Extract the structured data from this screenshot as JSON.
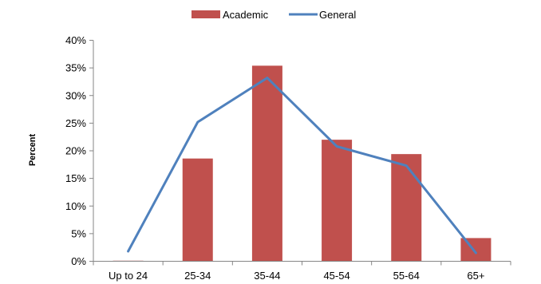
{
  "chart_data": {
    "type": "bar",
    "title": "",
    "xlabel": "",
    "ylabel": "Percent",
    "categories": [
      "Up to 24",
      "25-34",
      "35-44",
      "45-54",
      "55-64",
      "65+"
    ],
    "ylim": [
      0,
      40
    ],
    "yticks": [
      "0%",
      "5%",
      "10%",
      "15%",
      "20%",
      "25%",
      "30%",
      "35%",
      "40%"
    ],
    "grid": false,
    "legend_position": "top",
    "series": [
      {
        "name": "Academic",
        "kind": "bar",
        "color": "#C0504D",
        "values": [
          0.1,
          18.6,
          35.4,
          22.0,
          19.4,
          4.2
        ]
      },
      {
        "name": "General",
        "kind": "line",
        "color": "#4F81BD",
        "values": [
          1.8,
          25.2,
          33.2,
          20.8,
          17.3,
          1.5
        ]
      }
    ]
  }
}
